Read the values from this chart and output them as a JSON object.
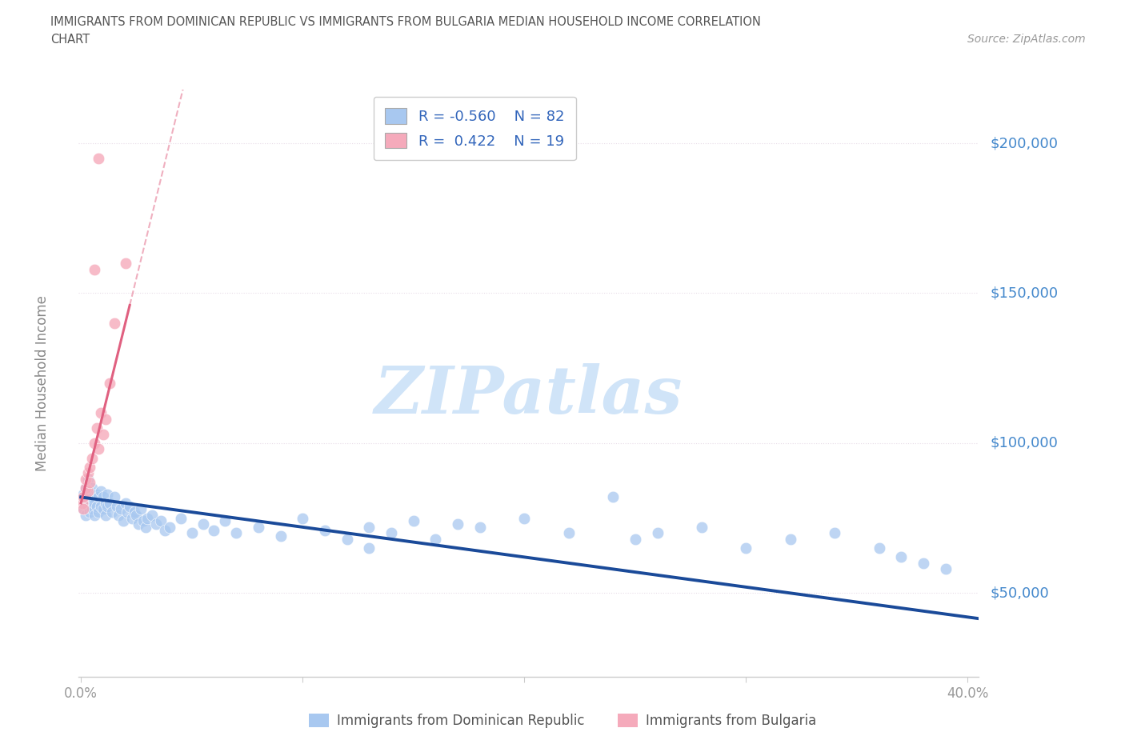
{
  "title_line1": "IMMIGRANTS FROM DOMINICAN REPUBLIC VS IMMIGRANTS FROM BULGARIA MEDIAN HOUSEHOLD INCOME CORRELATION",
  "title_line2": "CHART",
  "source": "Source: ZipAtlas.com",
  "ylabel": "Median Household Income",
  "yticks": [
    50000,
    100000,
    150000,
    200000
  ],
  "ytick_labels": [
    "$50,000",
    "$100,000",
    "$150,000",
    "$200,000"
  ],
  "xmin": -0.001,
  "xmax": 0.405,
  "ymin": 22000,
  "ymax": 218000,
  "r_blue": -0.56,
  "n_blue": 82,
  "r_pink": 0.422,
  "n_pink": 19,
  "color_blue_fill": "#A8C8F0",
  "color_pink_fill": "#F5AABB",
  "color_blue_line": "#1A4A99",
  "color_pink_line": "#E06080",
  "color_grid": "#E8DCE8",
  "color_title": "#555555",
  "color_source": "#999999",
  "color_ytick": "#4488CC",
  "color_legend_text": "#3366BB",
  "watermark": "ZIPatlas",
  "watermark_color": "#D0E4F8",
  "legend_label1": "Immigrants from Dominican Republic",
  "legend_label2": "Immigrants from Bulgaria",
  "blue_x": [
    0.001,
    0.001,
    0.002,
    0.002,
    0.002,
    0.003,
    0.003,
    0.003,
    0.004,
    0.004,
    0.004,
    0.005,
    0.005,
    0.005,
    0.006,
    0.006,
    0.007,
    0.007,
    0.008,
    0.008,
    0.009,
    0.009,
    0.01,
    0.01,
    0.011,
    0.011,
    0.012,
    0.012,
    0.013,
    0.014,
    0.015,
    0.016,
    0.017,
    0.018,
    0.019,
    0.02,
    0.021,
    0.022,
    0.023,
    0.024,
    0.025,
    0.026,
    0.027,
    0.028,
    0.029,
    0.03,
    0.032,
    0.034,
    0.036,
    0.038,
    0.04,
    0.045,
    0.05,
    0.055,
    0.06,
    0.065,
    0.07,
    0.08,
    0.09,
    0.1,
    0.11,
    0.12,
    0.13,
    0.14,
    0.15,
    0.16,
    0.18,
    0.2,
    0.22,
    0.24,
    0.25,
    0.26,
    0.28,
    0.3,
    0.32,
    0.34,
    0.36,
    0.37,
    0.38,
    0.39,
    0.17,
    0.13
  ],
  "blue_y": [
    83000,
    78000,
    80000,
    76000,
    85000,
    82000,
    79000,
    88000,
    80000,
    84000,
    77000,
    82000,
    78000,
    85000,
    80000,
    76000,
    83000,
    79000,
    82000,
    77000,
    79000,
    84000,
    82000,
    78000,
    80000,
    76000,
    83000,
    79000,
    80000,
    77000,
    82000,
    79000,
    76000,
    78000,
    74000,
    80000,
    77000,
    79000,
    75000,
    77000,
    76000,
    73000,
    78000,
    74000,
    72000,
    75000,
    76000,
    73000,
    74000,
    71000,
    72000,
    75000,
    70000,
    73000,
    71000,
    74000,
    70000,
    72000,
    69000,
    75000,
    71000,
    68000,
    72000,
    70000,
    74000,
    68000,
    72000,
    75000,
    70000,
    82000,
    68000,
    70000,
    72000,
    65000,
    68000,
    70000,
    65000,
    62000,
    60000,
    58000,
    73000,
    65000
  ],
  "pink_x": [
    0.0005,
    0.001,
    0.001,
    0.002,
    0.002,
    0.003,
    0.003,
    0.004,
    0.004,
    0.005,
    0.006,
    0.007,
    0.008,
    0.009,
    0.01,
    0.011,
    0.013,
    0.015,
    0.02
  ],
  "pink_y": [
    80000,
    82000,
    78000,
    85000,
    88000,
    90000,
    84000,
    92000,
    87000,
    95000,
    100000,
    105000,
    98000,
    110000,
    103000,
    108000,
    120000,
    140000,
    160000
  ],
  "pink_outlier_x": [
    0.008
  ],
  "pink_outlier_y": [
    195000
  ],
  "pink_outlier2_x": [
    0.006
  ],
  "pink_outlier2_y": [
    158000
  ]
}
